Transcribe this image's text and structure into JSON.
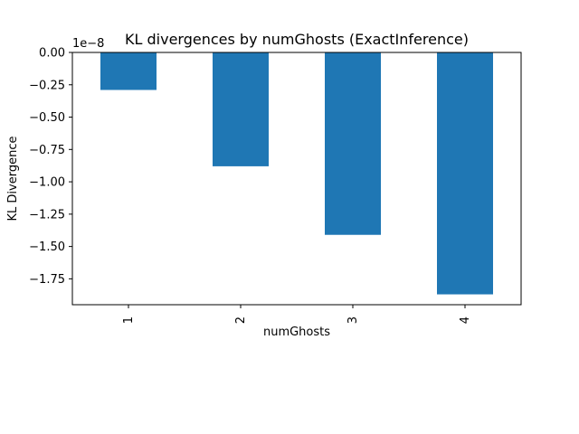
{
  "chart_data": {
    "type": "bar",
    "title": "KL divergences by numGhosts (ExactInference)",
    "xlabel": "numGhosts",
    "ylabel": "KL Divergence",
    "offset_label": "1e−8",
    "categories": [
      "1",
      "2",
      "3",
      "4"
    ],
    "values": [
      -0.29,
      -0.88,
      -1.41,
      -1.87
    ],
    "value_scale": 1e-08,
    "ylim": [
      -1.95,
      0.0
    ],
    "yticks": [
      0.0,
      -0.25,
      -0.5,
      -0.75,
      -1.0,
      -1.25,
      -1.5,
      -1.75
    ],
    "ytick_labels": [
      "0.00",
      "−0.25",
      "−0.50",
      "−0.75",
      "−1.00",
      "−1.25",
      "−1.50",
      "−1.75"
    ],
    "bar_color": "#1f77b4",
    "grid": false,
    "legend": "none"
  }
}
